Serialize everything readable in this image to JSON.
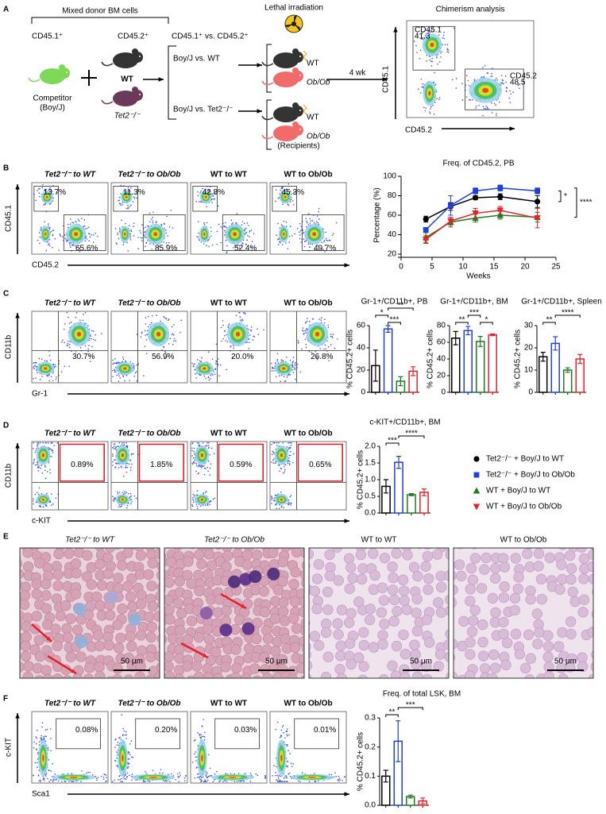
{
  "groups": [
    {
      "title": "Tet2⁻/⁻ to WT",
      "color": "#000000"
    },
    {
      "title": "Tet2⁻/⁻ to Ob/Ob",
      "color": "#1f3fe0"
    },
    {
      "title": "WT to WT",
      "color": "#1e7b1e"
    },
    {
      "title": "WT to Ob/Ob",
      "color": "#e8202a"
    }
  ],
  "panels": {
    "A": {
      "label": "A",
      "donor_title": "Mixed donor BM cells",
      "cd451": "CD45.1⁺",
      "cd452": "CD45.2⁺",
      "wt": "WT",
      "tet2": "Tet2⁻/⁻",
      "competitor": "Competitor",
      "boyj": "(Boy/J)",
      "comparison": "CD45.1⁺ vs. CD45.2⁺",
      "arm1": "Boy/J vs. WT",
      "arm2": "Boy/J vs. Tet2⁻/⁻",
      "irradiation": "Lethal irradiation",
      "recipients": [
        "WT",
        "Ob/Ob",
        "WT",
        "Ob/Ob"
      ],
      "recipients_label": "(Recipients)",
      "time": "4 wk",
      "analysis": "Chimerism analysis",
      "gate1": [
        "CD45.1",
        "41.3"
      ],
      "gate2": [
        "CD45.2",
        "48.5"
      ],
      "y_axis": "CD45.1",
      "x_axis": "CD45.2"
    },
    "B": {
      "label": "B",
      "percent_top": [
        "13.7%",
        "11.3%",
        "42.8%",
        "45.3%"
      ],
      "percent_bottom": [
        "65.6%",
        "85.9%",
        "52.4%",
        "49.7%"
      ],
      "y_axis": "CD45.1",
      "x_axis": "CD45.2"
    },
    "C": {
      "label": "C",
      "percent": [
        "30.7%",
        "56.9%",
        "20.0%",
        "26.8%"
      ],
      "y_axis": "CD11b",
      "x_axis": "Gr-1"
    },
    "D": {
      "label": "D",
      "percent": [
        "0.89%",
        "1.85%",
        "0.59%",
        "0.65%"
      ],
      "y_axis": "CD11b",
      "x_axis": "c-KIT"
    },
    "E": {
      "label": "E",
      "scale_bar": "50 μm"
    },
    "F": {
      "label": "F",
      "percent": [
        "0.08%",
        "0.20%",
        "0.03%",
        "0.01%"
      ],
      "y_axis": "c-KIT",
      "x_axis": "Sca1"
    }
  },
  "chart_data": [
    {
      "type": "line",
      "title": "Freq. of CD45.2, PB",
      "xlabel": "Weeks",
      "ylabel": "Percentage (%)",
      "x": [
        4,
        8,
        12,
        16,
        22
      ],
      "xlim": [
        0,
        25
      ],
      "xticks": [
        0,
        5,
        10,
        15,
        20,
        25
      ],
      "ylim": [
        20,
        100
      ],
      "yticks": [
        20,
        40,
        60,
        80,
        100
      ],
      "series": [
        {
          "name": "Tet2⁻/⁻ + Boy/J to WT",
          "color": "#000000",
          "marker": "circle",
          "values": [
            56,
            69,
            78,
            79,
            74
          ],
          "errors": [
            3,
            4,
            2,
            3,
            6
          ]
        },
        {
          "name": "Tet2⁻/⁻ + Boy/J to Ob/Ob",
          "color": "#1f3fe0",
          "marker": "square",
          "values": [
            45,
            70,
            85,
            88,
            85
          ],
          "errors": [
            2,
            10,
            3,
            3,
            3
          ]
        },
        {
          "name": "WT + Boy/J to WT",
          "color": "#1e7b1e",
          "marker": "triangle-up",
          "values": [
            37,
            53,
            57,
            60,
            58
          ],
          "errors": [
            5,
            5,
            4,
            4,
            5
          ]
        },
        {
          "name": "WT + Boy/J to Ob/Ob",
          "color": "#e8202a",
          "marker": "triangle-down",
          "values": [
            35,
            54,
            62,
            65,
            57
          ],
          "errors": [
            4,
            4,
            5,
            4,
            10
          ]
        }
      ],
      "annotations": [
        "*",
        "****"
      ]
    },
    {
      "type": "bar",
      "title": "Gr-1+/CD11b+, PB",
      "ylabel": "% CD45.2+ cells",
      "categories": [
        null,
        null,
        null,
        null
      ],
      "values": [
        24,
        57,
        10,
        19
      ],
      "errors": [
        14,
        3,
        4,
        4
      ],
      "colors": [
        "#000000",
        "#1f3fe0",
        "#1e7b1e",
        "#e8202a"
      ],
      "ylim": [
        0,
        60
      ],
      "yticks": [
        0,
        20,
        40,
        60
      ],
      "annotations": [
        "*",
        "***",
        "**"
      ]
    },
    {
      "type": "bar",
      "title": "Gr-1+/CD11b+, BM",
      "ylabel": "% CD45.2+ cells",
      "categories": [
        null,
        null,
        null,
        null
      ],
      "values": [
        65,
        74,
        61,
        69
      ],
      "errors": [
        8,
        5,
        6,
        1
      ],
      "colors": [
        "#000000",
        "#1f3fe0",
        "#1e7b1e",
        "#e8202a"
      ],
      "ylim": [
        0,
        80
      ],
      "yticks": [
        0,
        20,
        40,
        60,
        80
      ],
      "annotations": [
        "**",
        "***",
        "*"
      ]
    },
    {
      "type": "bar",
      "title": "Gr-1+/CD11b+, Spleen",
      "ylabel": "% CD45.2+ cells",
      "categories": [
        null,
        null,
        null,
        null
      ],
      "values": [
        16,
        22,
        10,
        15
      ],
      "errors": [
        2,
        3,
        1,
        2
      ],
      "colors": [
        "#000000",
        "#1f3fe0",
        "#1e7b1e",
        "#e8202a"
      ],
      "ylim": [
        0,
        30
      ],
      "yticks": [
        0,
        10,
        20,
        30
      ],
      "annotations": [
        "**",
        "****"
      ]
    },
    {
      "type": "bar",
      "title": "c-KIT+/CD11b+, BM",
      "ylabel": "% CD45.2+ cells",
      "categories": [
        null,
        null,
        null,
        null
      ],
      "values": [
        0.8,
        1.52,
        0.55,
        0.62
      ],
      "errors": [
        0.2,
        0.18,
        0.03,
        0.1
      ],
      "colors": [
        "#000000",
        "#1f3fe0",
        "#1e7b1e",
        "#e8202a"
      ],
      "ylim": [
        0,
        2
      ],
      "yticks": [
        {
          "value": 0,
          "label": "0.0"
        },
        0.5,
        {
          "value": 1,
          "label": "1.0"
        },
        1.5,
        {
          "value": 2,
          "label": "2.0"
        }
      ],
      "annotations": [
        "***",
        "****"
      ]
    },
    {
      "type": "bar",
      "title": "Freq. of total LSK, BM",
      "ylabel": "% CD45.2+ cells",
      "categories": [
        null,
        null,
        null,
        null
      ],
      "values": [
        0.1,
        0.22,
        0.03,
        0.015
      ],
      "errors": [
        0.02,
        0.07,
        0.005,
        0.01
      ],
      "colors": [
        "#000000",
        "#1f3fe0",
        "#1e7b1e",
        "#e8202a"
      ],
      "ylim": [
        0,
        0.3
      ],
      "yticks": [
        {
          "value": 0,
          "label": "0.0"
        },
        0.1,
        0.2,
        0.3
      ],
      "annotations": [
        "**",
        "***"
      ]
    }
  ]
}
